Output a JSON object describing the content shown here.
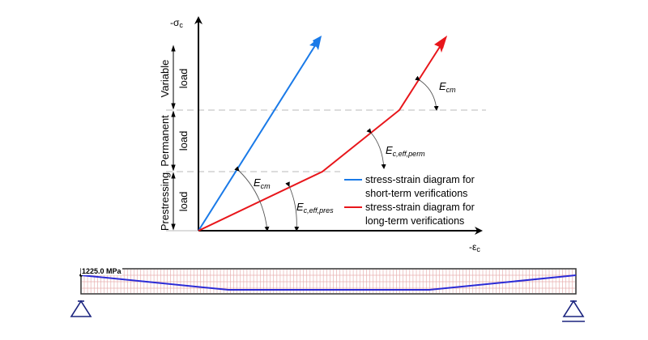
{
  "diagram": {
    "axes": {
      "y_label_prefix": "-σ",
      "y_label_sub": "c",
      "x_label_prefix": "-ε",
      "x_label_sub": "c"
    },
    "load_bands": [
      {
        "name": "Variable",
        "sub": "load"
      },
      {
        "name": "Permanent",
        "sub": "load"
      },
      {
        "name": "Prestressing",
        "sub": "load"
      }
    ],
    "moduli": {
      "ecm_main": "E",
      "ecm_sub": "cm",
      "ecm_upper": "E",
      "ecm_upper_sub": "cm",
      "eff_pres": "E",
      "eff_pres_sub": "c,eff,pres",
      "eff_perm": "E",
      "eff_perm_sub": "c,eff,perm"
    },
    "legend": [
      {
        "color": "#1a7ae8",
        "line1": "stress-strain diagram for",
        "line2": "short-term verifications"
      },
      {
        "color": "#e8161b",
        "line1": "stress-strain diagram for",
        "line2": "long-term verifications"
      }
    ],
    "colors": {
      "short_term": "#1a7ae8",
      "long_term": "#e8161b",
      "axis": "#000000",
      "guide": "#c8c8c8",
      "beam_line": "#2b2bd6",
      "beam_grid": "#e8b0b0",
      "support": "#1a237e"
    }
  },
  "beam": {
    "value_label": "1225.0 MPa"
  }
}
